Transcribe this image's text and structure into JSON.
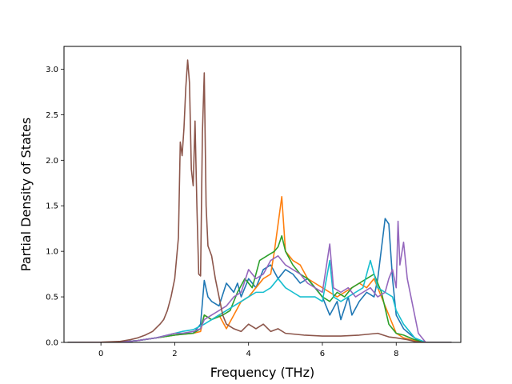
{
  "chart_data": {
    "type": "line",
    "title": "",
    "xlabel": "Frequency (THz)",
    "ylabel": "Partial Density of States",
    "xlim": [
      -1.0,
      9.75
    ],
    "ylim": [
      0.0,
      3.25
    ],
    "xticks": [
      0,
      2,
      4,
      6,
      8
    ],
    "yticks": [
      0.0,
      0.5,
      1.0,
      1.5,
      2.0,
      2.5,
      3.0
    ],
    "xtick_labels": [
      "0",
      "2",
      "4",
      "6",
      "8"
    ],
    "ytick_labels": [
      "0.0",
      "0.5",
      "1.0",
      "1.5",
      "2.0",
      "2.5",
      "3.0"
    ],
    "grid": false,
    "legend": "none",
    "series": [
      {
        "color": "#1f77b4",
        "points": [
          [
            -0.9,
            0
          ],
          [
            0.5,
            0.002
          ],
          [
            1.0,
            0.02
          ],
          [
            1.5,
            0.05
          ],
          [
            2.0,
            0.08
          ],
          [
            2.2,
            0.1
          ],
          [
            2.5,
            0.1
          ],
          [
            2.6,
            0.15
          ],
          [
            2.7,
            0.2
          ],
          [
            2.8,
            0.68
          ],
          [
            2.9,
            0.5
          ],
          [
            3.0,
            0.45
          ],
          [
            3.2,
            0.4
          ],
          [
            3.4,
            0.65
          ],
          [
            3.5,
            0.6
          ],
          [
            3.6,
            0.55
          ],
          [
            3.7,
            0.65
          ],
          [
            3.8,
            0.5
          ],
          [
            4.0,
            0.7
          ],
          [
            4.2,
            0.6
          ],
          [
            4.4,
            0.8
          ],
          [
            4.6,
            0.85
          ],
          [
            4.8,
            0.7
          ],
          [
            5.0,
            0.8
          ],
          [
            5.2,
            0.75
          ],
          [
            5.4,
            0.65
          ],
          [
            5.6,
            0.7
          ],
          [
            5.8,
            0.6
          ],
          [
            6.0,
            0.5
          ],
          [
            6.2,
            0.3
          ],
          [
            6.4,
            0.45
          ],
          [
            6.5,
            0.25
          ],
          [
            6.7,
            0.5
          ],
          [
            6.8,
            0.3
          ],
          [
            7.0,
            0.45
          ],
          [
            7.2,
            0.55
          ],
          [
            7.4,
            0.5
          ],
          [
            7.5,
            0.7
          ],
          [
            7.7,
            1.36
          ],
          [
            7.8,
            1.3
          ],
          [
            7.9,
            0.7
          ],
          [
            8.0,
            0.3
          ],
          [
            8.2,
            0.15
          ],
          [
            8.4,
            0.08
          ],
          [
            8.6,
            0.02
          ],
          [
            8.8,
            0
          ],
          [
            9.5,
            0
          ]
        ]
      },
      {
        "color": "#ff7f0e",
        "points": [
          [
            -0.9,
            0
          ],
          [
            0.5,
            0.002
          ],
          [
            1.0,
            0.02
          ],
          [
            1.5,
            0.05
          ],
          [
            2.0,
            0.08
          ],
          [
            2.5,
            0.1
          ],
          [
            2.7,
            0.12
          ],
          [
            2.8,
            0.3
          ],
          [
            3.0,
            0.25
          ],
          [
            3.2,
            0.3
          ],
          [
            3.4,
            0.15
          ],
          [
            3.6,
            0.3
          ],
          [
            3.8,
            0.45
          ],
          [
            4.0,
            0.5
          ],
          [
            4.2,
            0.6
          ],
          [
            4.4,
            0.7
          ],
          [
            4.6,
            0.75
          ],
          [
            4.7,
            1.0
          ],
          [
            4.8,
            1.3
          ],
          [
            4.9,
            1.6
          ],
          [
            5.0,
            1.0
          ],
          [
            5.2,
            0.9
          ],
          [
            5.4,
            0.85
          ],
          [
            5.6,
            0.7
          ],
          [
            5.8,
            0.65
          ],
          [
            6.0,
            0.6
          ],
          [
            6.2,
            0.55
          ],
          [
            6.4,
            0.5
          ],
          [
            6.6,
            0.55
          ],
          [
            6.8,
            0.6
          ],
          [
            7.0,
            0.65
          ],
          [
            7.2,
            0.6
          ],
          [
            7.4,
            0.7
          ],
          [
            7.6,
            0.5
          ],
          [
            7.8,
            0.3
          ],
          [
            8.0,
            0.1
          ],
          [
            8.2,
            0.05
          ],
          [
            8.5,
            0.02
          ],
          [
            8.8,
            0
          ],
          [
            9.5,
            0
          ]
        ]
      },
      {
        "color": "#2ca02c",
        "points": [
          [
            -0.9,
            0
          ],
          [
            0.5,
            0.002
          ],
          [
            1.0,
            0.02
          ],
          [
            1.5,
            0.05
          ],
          [
            2.0,
            0.08
          ],
          [
            2.5,
            0.1
          ],
          [
            2.7,
            0.15
          ],
          [
            2.8,
            0.3
          ],
          [
            3.0,
            0.25
          ],
          [
            3.3,
            0.3
          ],
          [
            3.5,
            0.35
          ],
          [
            3.7,
            0.55
          ],
          [
            3.9,
            0.7
          ],
          [
            4.1,
            0.6
          ],
          [
            4.3,
            0.9
          ],
          [
            4.5,
            0.95
          ],
          [
            4.7,
            1.0
          ],
          [
            4.8,
            1.05
          ],
          [
            4.9,
            1.17
          ],
          [
            5.0,
            1.0
          ],
          [
            5.2,
            0.85
          ],
          [
            5.4,
            0.75
          ],
          [
            5.6,
            0.7
          ],
          [
            5.8,
            0.6
          ],
          [
            6.0,
            0.5
          ],
          [
            6.2,
            0.45
          ],
          [
            6.4,
            0.55
          ],
          [
            6.6,
            0.5
          ],
          [
            6.8,
            0.6
          ],
          [
            7.0,
            0.65
          ],
          [
            7.2,
            0.7
          ],
          [
            7.4,
            0.75
          ],
          [
            7.6,
            0.55
          ],
          [
            7.8,
            0.2
          ],
          [
            8.0,
            0.1
          ],
          [
            8.2,
            0.08
          ],
          [
            8.5,
            0.03
          ],
          [
            8.8,
            0
          ],
          [
            9.5,
            0
          ]
        ]
      },
      {
        "color": "#17becf",
        "points": [
          [
            -0.9,
            0
          ],
          [
            0.5,
            0.002
          ],
          [
            1.0,
            0.02
          ],
          [
            1.5,
            0.05
          ],
          [
            2.0,
            0.1
          ],
          [
            2.2,
            0.12
          ],
          [
            2.5,
            0.14
          ],
          [
            2.8,
            0.2
          ],
          [
            3.0,
            0.25
          ],
          [
            3.2,
            0.3
          ],
          [
            3.4,
            0.35
          ],
          [
            3.6,
            0.4
          ],
          [
            3.8,
            0.45
          ],
          [
            4.0,
            0.5
          ],
          [
            4.2,
            0.55
          ],
          [
            4.4,
            0.55
          ],
          [
            4.6,
            0.6
          ],
          [
            4.8,
            0.7
          ],
          [
            5.0,
            0.6
          ],
          [
            5.2,
            0.55
          ],
          [
            5.4,
            0.5
          ],
          [
            5.6,
            0.5
          ],
          [
            5.8,
            0.5
          ],
          [
            6.0,
            0.45
          ],
          [
            6.2,
            0.9
          ],
          [
            6.3,
            0.5
          ],
          [
            6.5,
            0.45
          ],
          [
            6.7,
            0.5
          ],
          [
            6.9,
            0.55
          ],
          [
            7.1,
            0.6
          ],
          [
            7.3,
            0.9
          ],
          [
            7.5,
            0.6
          ],
          [
            7.7,
            0.55
          ],
          [
            7.9,
            0.5
          ],
          [
            8.0,
            0.35
          ],
          [
            8.2,
            0.2
          ],
          [
            8.5,
            0.05
          ],
          [
            8.8,
            0
          ],
          [
            9.5,
            0
          ]
        ]
      },
      {
        "color": "#9467bd",
        "points": [
          [
            -0.9,
            0
          ],
          [
            0.5,
            0.002
          ],
          [
            1.0,
            0.02
          ],
          [
            1.5,
            0.05
          ],
          [
            2.0,
            0.1
          ],
          [
            2.2,
            0.1
          ],
          [
            2.5,
            0.12
          ],
          [
            2.7,
            0.15
          ],
          [
            2.8,
            0.25
          ],
          [
            3.0,
            0.3
          ],
          [
            3.2,
            0.35
          ],
          [
            3.4,
            0.4
          ],
          [
            3.6,
            0.5
          ],
          [
            3.8,
            0.55
          ],
          [
            4.0,
            0.8
          ],
          [
            4.2,
            0.7
          ],
          [
            4.4,
            0.75
          ],
          [
            4.6,
            0.9
          ],
          [
            4.8,
            0.95
          ],
          [
            5.0,
            0.85
          ],
          [
            5.2,
            0.8
          ],
          [
            5.4,
            0.75
          ],
          [
            5.6,
            0.65
          ],
          [
            5.8,
            0.6
          ],
          [
            6.0,
            0.55
          ],
          [
            6.2,
            1.08
          ],
          [
            6.3,
            0.6
          ],
          [
            6.5,
            0.55
          ],
          [
            6.7,
            0.6
          ],
          [
            6.9,
            0.5
          ],
          [
            7.1,
            0.55
          ],
          [
            7.3,
            0.6
          ],
          [
            7.5,
            0.5
          ],
          [
            7.7,
            0.55
          ],
          [
            7.8,
            0.7
          ],
          [
            7.9,
            0.8
          ],
          [
            8.0,
            0.6
          ],
          [
            8.05,
            1.33
          ],
          [
            8.1,
            0.85
          ],
          [
            8.2,
            1.1
          ],
          [
            8.3,
            0.7
          ],
          [
            8.4,
            0.5
          ],
          [
            8.5,
            0.3
          ],
          [
            8.6,
            0.1
          ],
          [
            8.8,
            0
          ],
          [
            9.5,
            0
          ]
        ]
      },
      {
        "color": "#8c564b",
        "points": [
          [
            -0.9,
            0
          ],
          [
            0.0,
            0.002
          ],
          [
            0.5,
            0.01
          ],
          [
            0.8,
            0.03
          ],
          [
            1.0,
            0.05
          ],
          [
            1.2,
            0.08
          ],
          [
            1.4,
            0.12
          ],
          [
            1.6,
            0.2
          ],
          [
            1.7,
            0.25
          ],
          [
            1.8,
            0.35
          ],
          [
            1.9,
            0.5
          ],
          [
            2.0,
            0.7
          ],
          [
            2.1,
            1.15
          ],
          [
            2.15,
            2.2
          ],
          [
            2.2,
            2.05
          ],
          [
            2.25,
            2.35
          ],
          [
            2.3,
            2.8
          ],
          [
            2.35,
            3.1
          ],
          [
            2.4,
            2.85
          ],
          [
            2.45,
            1.9
          ],
          [
            2.5,
            1.72
          ],
          [
            2.55,
            2.43
          ],
          [
            2.6,
            1.5
          ],
          [
            2.65,
            0.75
          ],
          [
            2.7,
            0.73
          ],
          [
            2.75,
            2.3
          ],
          [
            2.8,
            2.96
          ],
          [
            2.85,
            1.5
          ],
          [
            2.9,
            1.06
          ],
          [
            3.0,
            0.95
          ],
          [
            3.1,
            0.7
          ],
          [
            3.2,
            0.5
          ],
          [
            3.3,
            0.3
          ],
          [
            3.4,
            0.2
          ],
          [
            3.6,
            0.15
          ],
          [
            3.8,
            0.12
          ],
          [
            4.0,
            0.2
          ],
          [
            4.2,
            0.15
          ],
          [
            4.4,
            0.2
          ],
          [
            4.6,
            0.12
          ],
          [
            4.8,
            0.15
          ],
          [
            5.0,
            0.1
          ],
          [
            5.5,
            0.08
          ],
          [
            6.0,
            0.07
          ],
          [
            6.5,
            0.07
          ],
          [
            7.0,
            0.08
          ],
          [
            7.5,
            0.1
          ],
          [
            7.8,
            0.06
          ],
          [
            8.0,
            0.05
          ],
          [
            8.3,
            0.03
          ],
          [
            8.5,
            0.01
          ],
          [
            8.8,
            0
          ],
          [
            9.5,
            0
          ]
        ]
      }
    ]
  }
}
